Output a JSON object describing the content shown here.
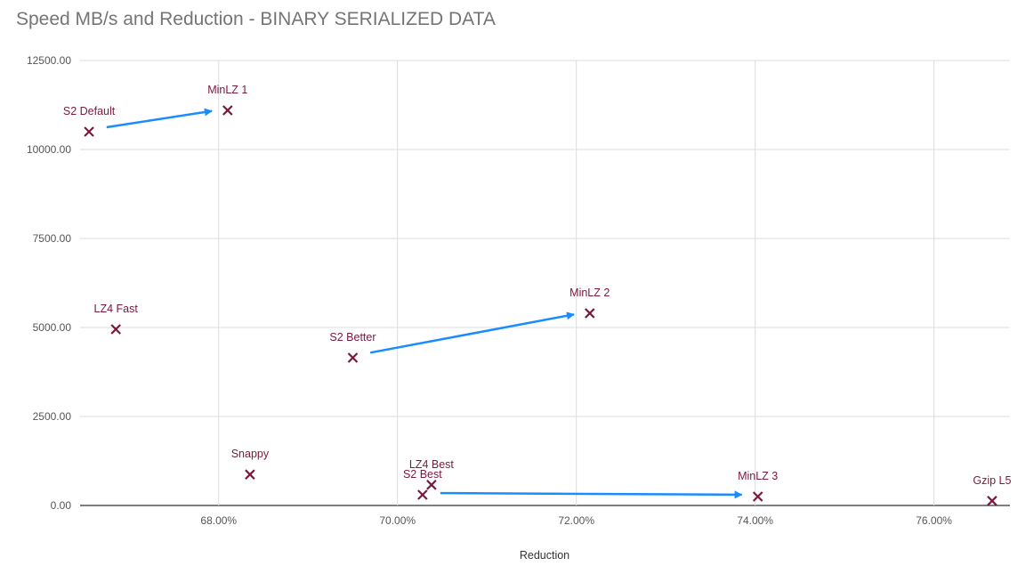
{
  "chart_data": {
    "type": "scatter",
    "title": "Speed MB/s and Reduction - BINARY SERIALIZED DATA",
    "xlabel": "Reduction",
    "ylabel": "",
    "xlim": [
      66.45,
      76.85
    ],
    "ylim": [
      0,
      12500
    ],
    "x_ticks": [
      68,
      70,
      72,
      74,
      76
    ],
    "x_tick_labels": [
      "68.00%",
      "70.00%",
      "72.00%",
      "74.00%",
      "76.00%"
    ],
    "y_ticks": [
      0,
      2500,
      5000,
      7500,
      10000,
      12500
    ],
    "y_tick_labels": [
      "0.00",
      "2500.00",
      "5000.00",
      "7500.00",
      "10000.00",
      "12500.00"
    ],
    "grid": true,
    "marker_color": "#7a1840",
    "arrow_color": "#1a8cff",
    "points": [
      {
        "label": "S2 Default",
        "x": 66.55,
        "y": 10500
      },
      {
        "label": "MinLZ 1",
        "x": 68.1,
        "y": 11100
      },
      {
        "label": "LZ4 Fast",
        "x": 66.85,
        "y": 4950
      },
      {
        "label": "S2 Better",
        "x": 69.5,
        "y": 4150
      },
      {
        "label": "MinLZ 2",
        "x": 72.15,
        "y": 5400
      },
      {
        "label": "Snappy",
        "x": 68.35,
        "y": 870
      },
      {
        "label": "LZ4 Best",
        "x": 70.38,
        "y": 580
      },
      {
        "label": "S2 Best",
        "x": 70.28,
        "y": 300
      },
      {
        "label": "MinLZ 3",
        "x": 74.03,
        "y": 250
      },
      {
        "label": "Gzip L5",
        "x": 76.65,
        "y": 130
      }
    ],
    "arrows": [
      {
        "from": "S2 Default",
        "to": "MinLZ 1"
      },
      {
        "from": "S2 Better",
        "to": "MinLZ 2"
      },
      {
        "from": "S2 Best",
        "to": "MinLZ 3"
      }
    ]
  }
}
